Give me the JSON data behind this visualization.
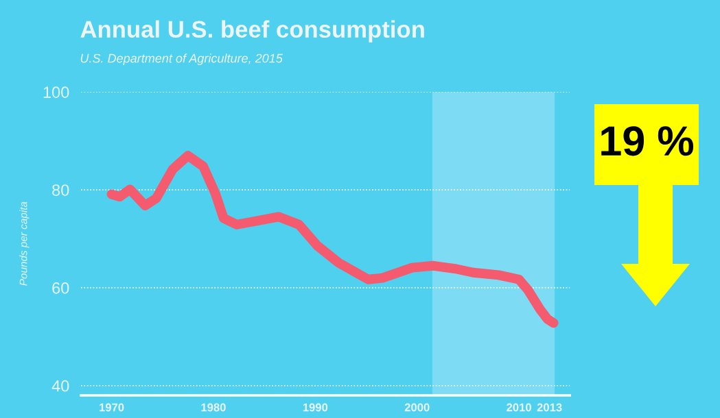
{
  "chart_data": {
    "type": "line",
    "title": "Annual U.S. beef consumption",
    "subtitle": "U.S. Department of Agriculture, 2015",
    "ylabel": "Pounds per capita",
    "x": [
      1970,
      1970.8,
      1971.8,
      1973.3,
      1974.4,
      1976.0,
      1977.5,
      1979.0,
      1980.2,
      1981.0,
      1982.3,
      1986.4,
      1988.4,
      1990.2,
      1992.3,
      1995.2,
      1996.6,
      1999.5,
      2001.6,
      2003.7,
      2005.5,
      2008.0,
      2010.0,
      2010.9,
      2012.1,
      2012.8,
      2013.4
    ],
    "series": [
      {
        "color": "#f45b6f",
        "values": [
          79.1,
          78.6,
          80.1,
          76.8,
          78.3,
          84.2,
          87.0,
          84.8,
          79.2,
          74.2,
          72.9,
          74.5,
          72.9,
          68.6,
          65.1,
          61.7,
          62.0,
          64.1,
          64.5,
          63.9,
          63.1,
          62.6,
          61.7,
          59.5,
          55.5,
          53.6,
          52.8
        ]
      }
    ],
    "xlim": [
      1967,
      2015
    ],
    "xticks": [
      1970,
      1980,
      1990,
      2000,
      2010,
      2013
    ],
    "ylim": [
      38,
      100
    ],
    "yticks": [
      40,
      60,
      80,
      100
    ],
    "bands": [
      {
        "axis": "x",
        "from": 2001.5,
        "to": 2013.5,
        "color": "#7ddcf3"
      }
    ],
    "grid": "y",
    "legend": false,
    "line_style": "solid",
    "annotations": [
      "19 %"
    ]
  }
}
